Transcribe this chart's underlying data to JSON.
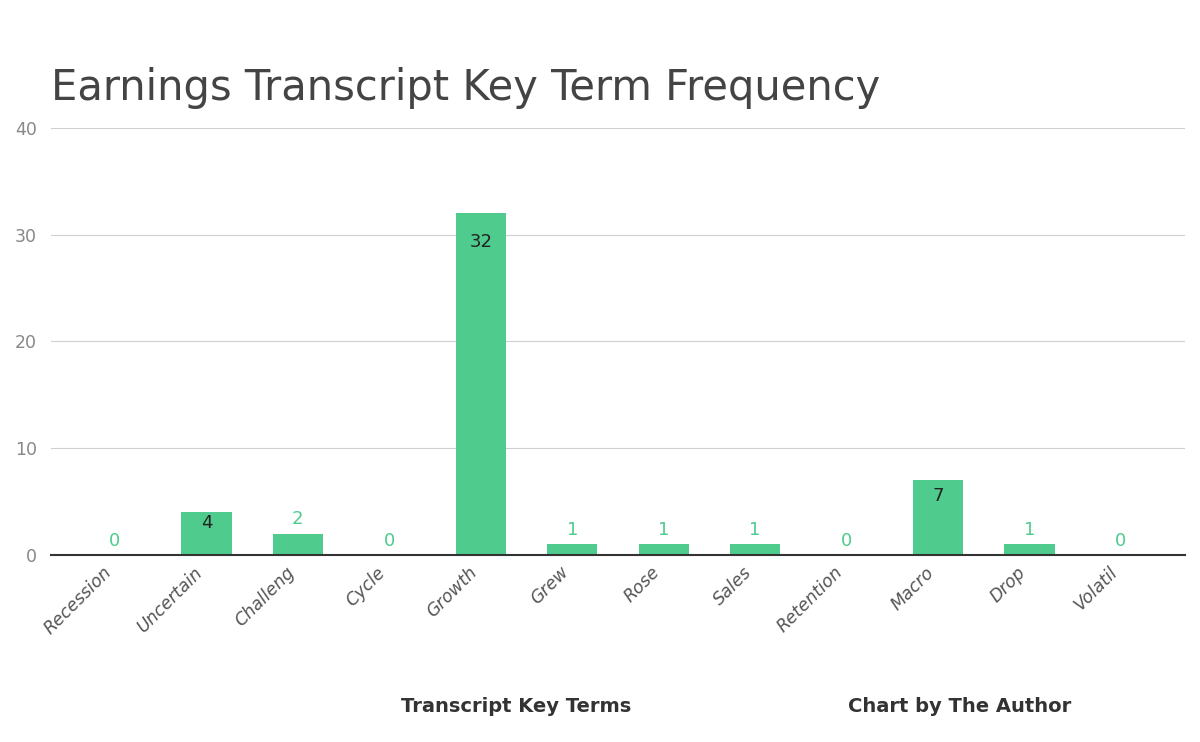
{
  "title": "Earnings Transcript Key Term Frequency",
  "categories": [
    "Recession",
    "Uncertain",
    "Challeng",
    "Cycle",
    "Growth",
    "Grew",
    "Rose",
    "Sales",
    "Retention",
    "Macro",
    "Drop",
    "Volatil"
  ],
  "values": [
    0,
    4,
    2,
    0,
    32,
    1,
    1,
    1,
    0,
    7,
    1,
    0
  ],
  "bar_color": "#4ECB8D",
  "label_color_green": "#4ECB8D",
  "label_color_black": "#222222",
  "xlabel": "Transcript Key Terms",
  "xlabel2": "Chart by The Author",
  "ylim": [
    0,
    40
  ],
  "yticks": [
    0,
    10,
    20,
    30,
    40
  ],
  "background_color": "#ffffff",
  "grid_color": "#d0d0d0",
  "title_fontsize": 30,
  "tick_label_fontsize": 12.5,
  "bar_label_fontsize": 13,
  "xlabel_fontsize": 14,
  "ytick_color": "#888888"
}
